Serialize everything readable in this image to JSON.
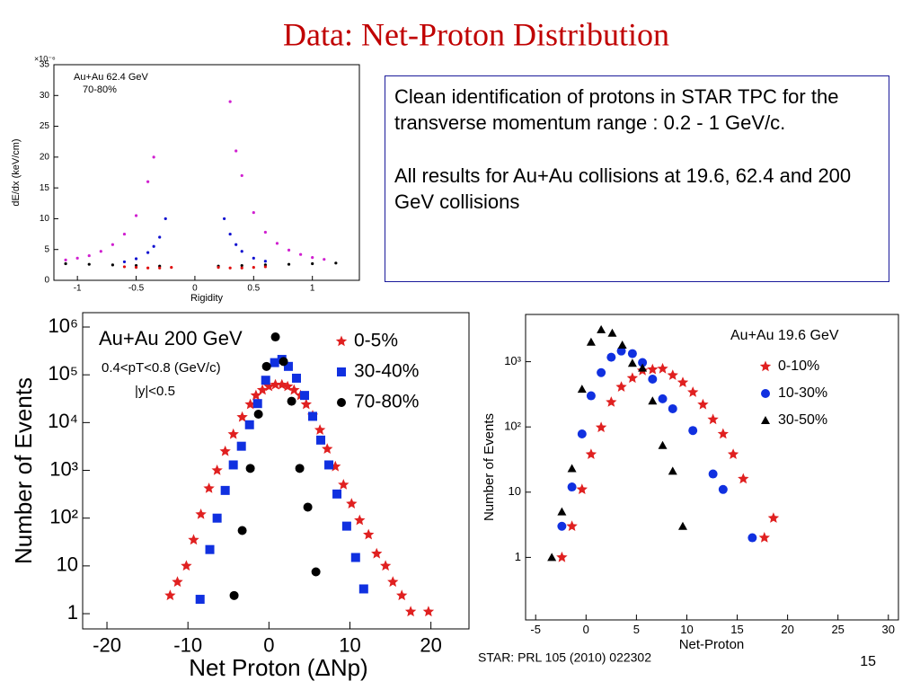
{
  "title": "Data: Net-Proton Distribution",
  "textbox": {
    "paragraphs": [
      "Clean identification of protons in STAR TPC for the transverse momentum range : 0.2 - 1 GeV/c.",
      "All results for Au+Au collisions at 19.6, 62.4 and 200 GeV collisions"
    ]
  },
  "citation": "STAR: PRL 105 (2010) 022302",
  "page_number": "15",
  "chart_data": [
    {
      "type": "scatter",
      "x_label": "Rigidity",
      "y_label": "dE/dx (keV/cm)",
      "annotations": [
        "Au+Au 62.4 GeV",
        "70-80%",
        "×10⁻⁶"
      ],
      "xlim": [
        -1.2,
        1.4
      ],
      "xticks": [
        -1,
        -0.5,
        0,
        0.5,
        1
      ],
      "ylim": [
        0,
        35
      ],
      "yticks": [
        0,
        5,
        10,
        15,
        20,
        25,
        30,
        35
      ],
      "series": [
        {
          "color": "#d020d0",
          "marker": "dot",
          "x": [
            -0.35,
            -0.4,
            -0.5,
            -0.6,
            -0.7,
            -0.8,
            -0.9,
            -1.0,
            -1.1,
            0.3,
            0.35,
            0.4,
            0.5,
            0.6,
            0.7,
            0.8,
            0.9,
            1.0,
            1.1
          ],
          "values": [
            20,
            16,
            10.5,
            7.5,
            5.8,
            4.7,
            4,
            3.6,
            3.3,
            29,
            21,
            17,
            11,
            7.8,
            6,
            4.9,
            4.2,
            3.7,
            3.4
          ]
        },
        {
          "color": "#1010d0",
          "marker": "dot",
          "x": [
            -0.25,
            -0.3,
            -0.35,
            -0.4,
            -0.5,
            -0.6,
            0.25,
            0.3,
            0.35,
            0.4,
            0.5,
            0.6
          ],
          "values": [
            10,
            7,
            5.5,
            4.5,
            3.5,
            3,
            10,
            7.5,
            5.8,
            4.7,
            3.6,
            3.1
          ]
        },
        {
          "color": "#000000",
          "marker": "dot",
          "x": [
            -1.1,
            -0.9,
            -0.7,
            -0.5,
            -0.3,
            0.2,
            0.4,
            0.6,
            0.8,
            1.0,
            1.2
          ],
          "values": [
            2.7,
            2.6,
            2.5,
            2.4,
            2.3,
            2.3,
            2.4,
            2.5,
            2.6,
            2.7,
            2.8
          ]
        },
        {
          "color": "#e01010",
          "marker": "dot",
          "x": [
            -0.6,
            -0.5,
            -0.4,
            -0.3,
            -0.2,
            0.2,
            0.3,
            0.4,
            0.5,
            0.6
          ],
          "values": [
            2.2,
            2.1,
            2.0,
            2.0,
            2.1,
            2.1,
            2.0,
            2.0,
            2.1,
            2.2
          ]
        }
      ]
    },
    {
      "type": "scatter",
      "log_y": true,
      "x_label": "Net Proton (ΔNp)",
      "y_label": "Number of Events",
      "annotations": [
        "Au+Au 200 GeV",
        "0.4<pT<0.8 (GeV/c)",
        "|y|<0.5"
      ],
      "xlim": [
        -23,
        24.7
      ],
      "xticks": [
        -20,
        -10,
        0,
        10,
        20
      ],
      "ylim": [
        0.48,
        2000000
      ],
      "yticks": [
        1,
        10,
        {
          "value": 100,
          "label": "10²"
        },
        {
          "value": 1000,
          "label": "10³"
        },
        {
          "value": 10000,
          "label": "10⁴"
        },
        {
          "value": 100000,
          "label": "10⁵"
        },
        {
          "value": 1000000,
          "label": "10⁶"
        }
      ],
      "series": [
        {
          "name": "0-5%",
          "color": "#e02020",
          "marker": "star",
          "x": [
            -12.2,
            -11.3,
            -10.2,
            -9.3,
            -8.4,
            -7.4,
            -6.4,
            -5.4,
            -4.4,
            -3.3,
            -2.3,
            -1.6,
            -0.8,
            0,
            0.8,
            1.6,
            2.3,
            3.1,
            3.9,
            4.6,
            5.4,
            6.3,
            7.2,
            8.2,
            9.2,
            10.2,
            11.2,
            12.3,
            13.3,
            14.4,
            15.3,
            16.4,
            17.5,
            19.7
          ],
          "values": [
            2.4,
            4.6,
            10,
            35,
            120,
            420,
            1000,
            2500,
            5700,
            13000,
            24000,
            37000,
            48000,
            57000,
            62000,
            62000,
            57000,
            48000,
            37000,
            24000,
            14000,
            7000,
            2800,
            1200,
            500,
            200,
            90,
            45,
            18,
            10,
            4.6,
            2.4,
            1.1,
            1.1
          ]
        },
        {
          "name": "30-40%",
          "color": "#1030e0",
          "marker": "square",
          "x": [
            -8.5,
            -7.3,
            -6.4,
            -5.4,
            -4.4,
            -3.4,
            -2.4,
            -1.4,
            -0.4,
            0.7,
            1.6,
            2.4,
            3.4,
            4.4,
            5.4,
            6.4,
            7.4,
            8.4,
            9.6,
            10.7,
            11.7
          ],
          "values": [
            2,
            22,
            100,
            380,
            1300,
            3200,
            9000,
            25000,
            77000,
            180000,
            210000,
            150000,
            85000,
            37000,
            13500,
            4300,
            1300,
            320,
            68,
            15,
            3.3
          ]
        },
        {
          "name": "70-80%",
          "color": "#000000",
          "marker": "circle",
          "x": [
            -4.3,
            -3.3,
            -2.3,
            -1.3,
            -0.3,
            0.8,
            1.8,
            2.8,
            3.8,
            4.8,
            5.8
          ],
          "values": [
            2.4,
            55,
            1100,
            15000,
            150000,
            620000,
            190000,
            28000,
            1100,
            170,
            7.5
          ]
        }
      ]
    },
    {
      "type": "scatter",
      "log_y": true,
      "x_label": "Net-Proton",
      "y_label": "Number of Events",
      "annotations": [
        "Au+Au 19.6 GeV"
      ],
      "xlim": [
        -6,
        31
      ],
      "xticks": [
        -5,
        0,
        5,
        10,
        15,
        20,
        25,
        30
      ],
      "ylim": [
        0.11,
        5300
      ],
      "yticks": [
        1,
        10,
        {
          "value": 100,
          "label": "10²"
        },
        {
          "value": 1000,
          "label": "10³"
        }
      ],
      "series": [
        {
          "name": "0-10%",
          "color": "#e02020",
          "marker": "star",
          "x": [
            -2.4,
            -1.4,
            -0.4,
            0.5,
            1.5,
            2.5,
            3.5,
            4.6,
            5.6,
            6.6,
            7.6,
            8.6,
            9.6,
            10.6,
            11.6,
            12.6,
            13.6,
            14.6,
            15.6,
            17.7,
            18.6
          ],
          "values": [
            1,
            3,
            11,
            38,
            98,
            240,
            410,
            560,
            730,
            760,
            780,
            620,
            480,
            340,
            220,
            130,
            78,
            38,
            16,
            2,
            4
          ]
        },
        {
          "name": "10-30%",
          "color": "#1030e0",
          "marker": "circle",
          "x": [
            -2.4,
            -1.4,
            -0.4,
            0.5,
            1.5,
            2.5,
            3.5,
            4.6,
            5.6,
            6.6,
            7.6,
            8.6,
            10.6,
            12.6,
            13.6,
            16.5
          ],
          "values": [
            3,
            12,
            78,
            300,
            680,
            1170,
            1460,
            1330,
            970,
            540,
            270,
            190,
            88,
            19,
            11,
            2
          ]
        },
        {
          "name": "30-50%",
          "color": "#000000",
          "marker": "triangle",
          "x": [
            -3.4,
            -2.4,
            -1.4,
            -0.4,
            0.5,
            1.5,
            2.6,
            3.6,
            4.6,
            5.6,
            6.6,
            7.6,
            8.6,
            9.6
          ],
          "values": [
            1,
            5,
            23,
            380,
            2000,
            3100,
            2750,
            1800,
            950,
            800,
            250,
            52,
            21,
            3
          ]
        }
      ]
    }
  ]
}
